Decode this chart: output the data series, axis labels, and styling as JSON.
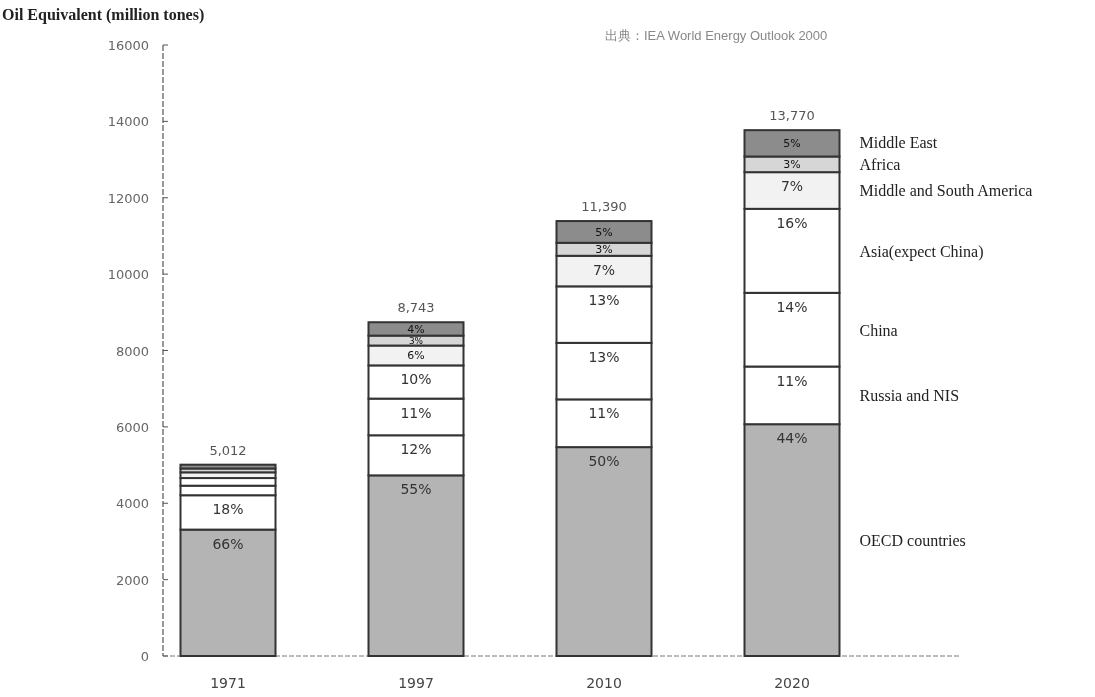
{
  "chart_data": {
    "type": "bar",
    "stacked": true,
    "ylabel": "Oil Equivalent (million tones)",
    "annotations": [
      "出典：IEA World Energy Outlook 2000",
      {
        "text": "66%",
        "x": "1971",
        "y": 3310
      },
      {
        "text": "18%",
        "x": "1971",
        "y": 4210
      },
      {
        "text": "55%",
        "x": "1997",
        "y": 4730
      },
      {
        "text": "12%",
        "x": "1997",
        "y": 5780
      },
      {
        "text": "11%",
        "x": "1997",
        "y": 6740
      },
      {
        "text": "10%",
        "x": "1997",
        "y": 7610
      },
      {
        "text": "6%",
        "x": "1997",
        "y": 8130
      },
      {
        "text": "3%",
        "x": "1997",
        "y": 8390
      },
      {
        "text": "4%",
        "x": "1997",
        "y": 8740
      },
      {
        "text": "50%",
        "x": "2010",
        "y": 5470
      },
      {
        "text": "11%",
        "x": "2010",
        "y": 6720
      },
      {
        "text": "13%",
        "x": "2010",
        "y": 8200
      },
      {
        "text": "13%",
        "x": "2010",
        "y": 9680
      },
      {
        "text": "7%",
        "x": "2010",
        "y": 10480
      },
      {
        "text": "3%",
        "x": "2010",
        "y": 10820
      },
      {
        "text": "5%",
        "x": "2010",
        "y": 11390
      },
      {
        "text": "44%",
        "x": "2020",
        "y": 6070
      },
      {
        "text": "11%",
        "x": "2020",
        "y": 7580
      },
      {
        "text": "14%",
        "x": "2020",
        "y": 9510
      },
      {
        "text": "16%",
        "x": "2020",
        "y": 11710
      },
      {
        "text": "7%",
        "x": "2020",
        "y": 12670
      },
      {
        "text": "3%",
        "x": "2020",
        "y": 13080
      },
      {
        "text": "5%",
        "x": "2020",
        "y": 13770
      }
    ],
    "categories": [
      "1971",
      "1997",
      "2010",
      "2020"
    ],
    "ylim": [
      0,
      16000
    ],
    "yticks": [
      0,
      2000,
      4000,
      6000,
      8000,
      10000,
      12000,
      14000,
      16000
    ],
    "series": [
      {
        "name": "OECD countries",
        "color": "#b4b4b4",
        "values": [
          3310,
          4730,
          5470,
          6070
        ]
      },
      {
        "name": "Russia and NIS",
        "color": "#ffffff",
        "values": [
          900,
          1050,
          1250,
          1510
        ]
      },
      {
        "name": "China",
        "color": "#ffffff",
        "values": [
          250,
          960,
          1480,
          1930
        ]
      },
      {
        "name": "Asia(expect China)",
        "color": "#ffffff",
        "values": [
          200,
          870,
          1480,
          2200
        ]
      },
      {
        "name": "Middle and South America",
        "color": "#f2f2f2",
        "values": [
          150,
          520,
          800,
          960
        ]
      },
      {
        "name": "Africa",
        "color": "#d6d6d6",
        "values": [
          100,
          260,
          340,
          410
        ]
      },
      {
        "name": "Middle East",
        "color": "#8c8c8c",
        "values": [
          100,
          350,
          570,
          690
        ]
      }
    ],
    "totals": [
      "5,012",
      "8,743",
      "11,390",
      "13,770"
    ]
  }
}
